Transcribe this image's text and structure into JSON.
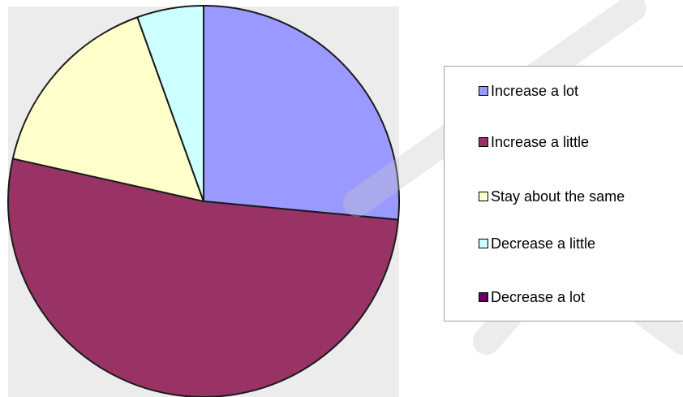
{
  "chart_data": {
    "type": "pie",
    "categories": [
      "Increase a lot",
      "Increase a little",
      "Stay about the same",
      "Decrease a little",
      "Decrease a lot"
    ],
    "values": [
      26.5,
      52.0,
      16.0,
      5.5,
      0.0
    ],
    "colors": [
      "#9999ff",
      "#993366",
      "#ffffcc",
      "#ccffff",
      "#660066"
    ],
    "legend_position": "right",
    "start_angle_deg": 0,
    "direction": "clockwise"
  }
}
